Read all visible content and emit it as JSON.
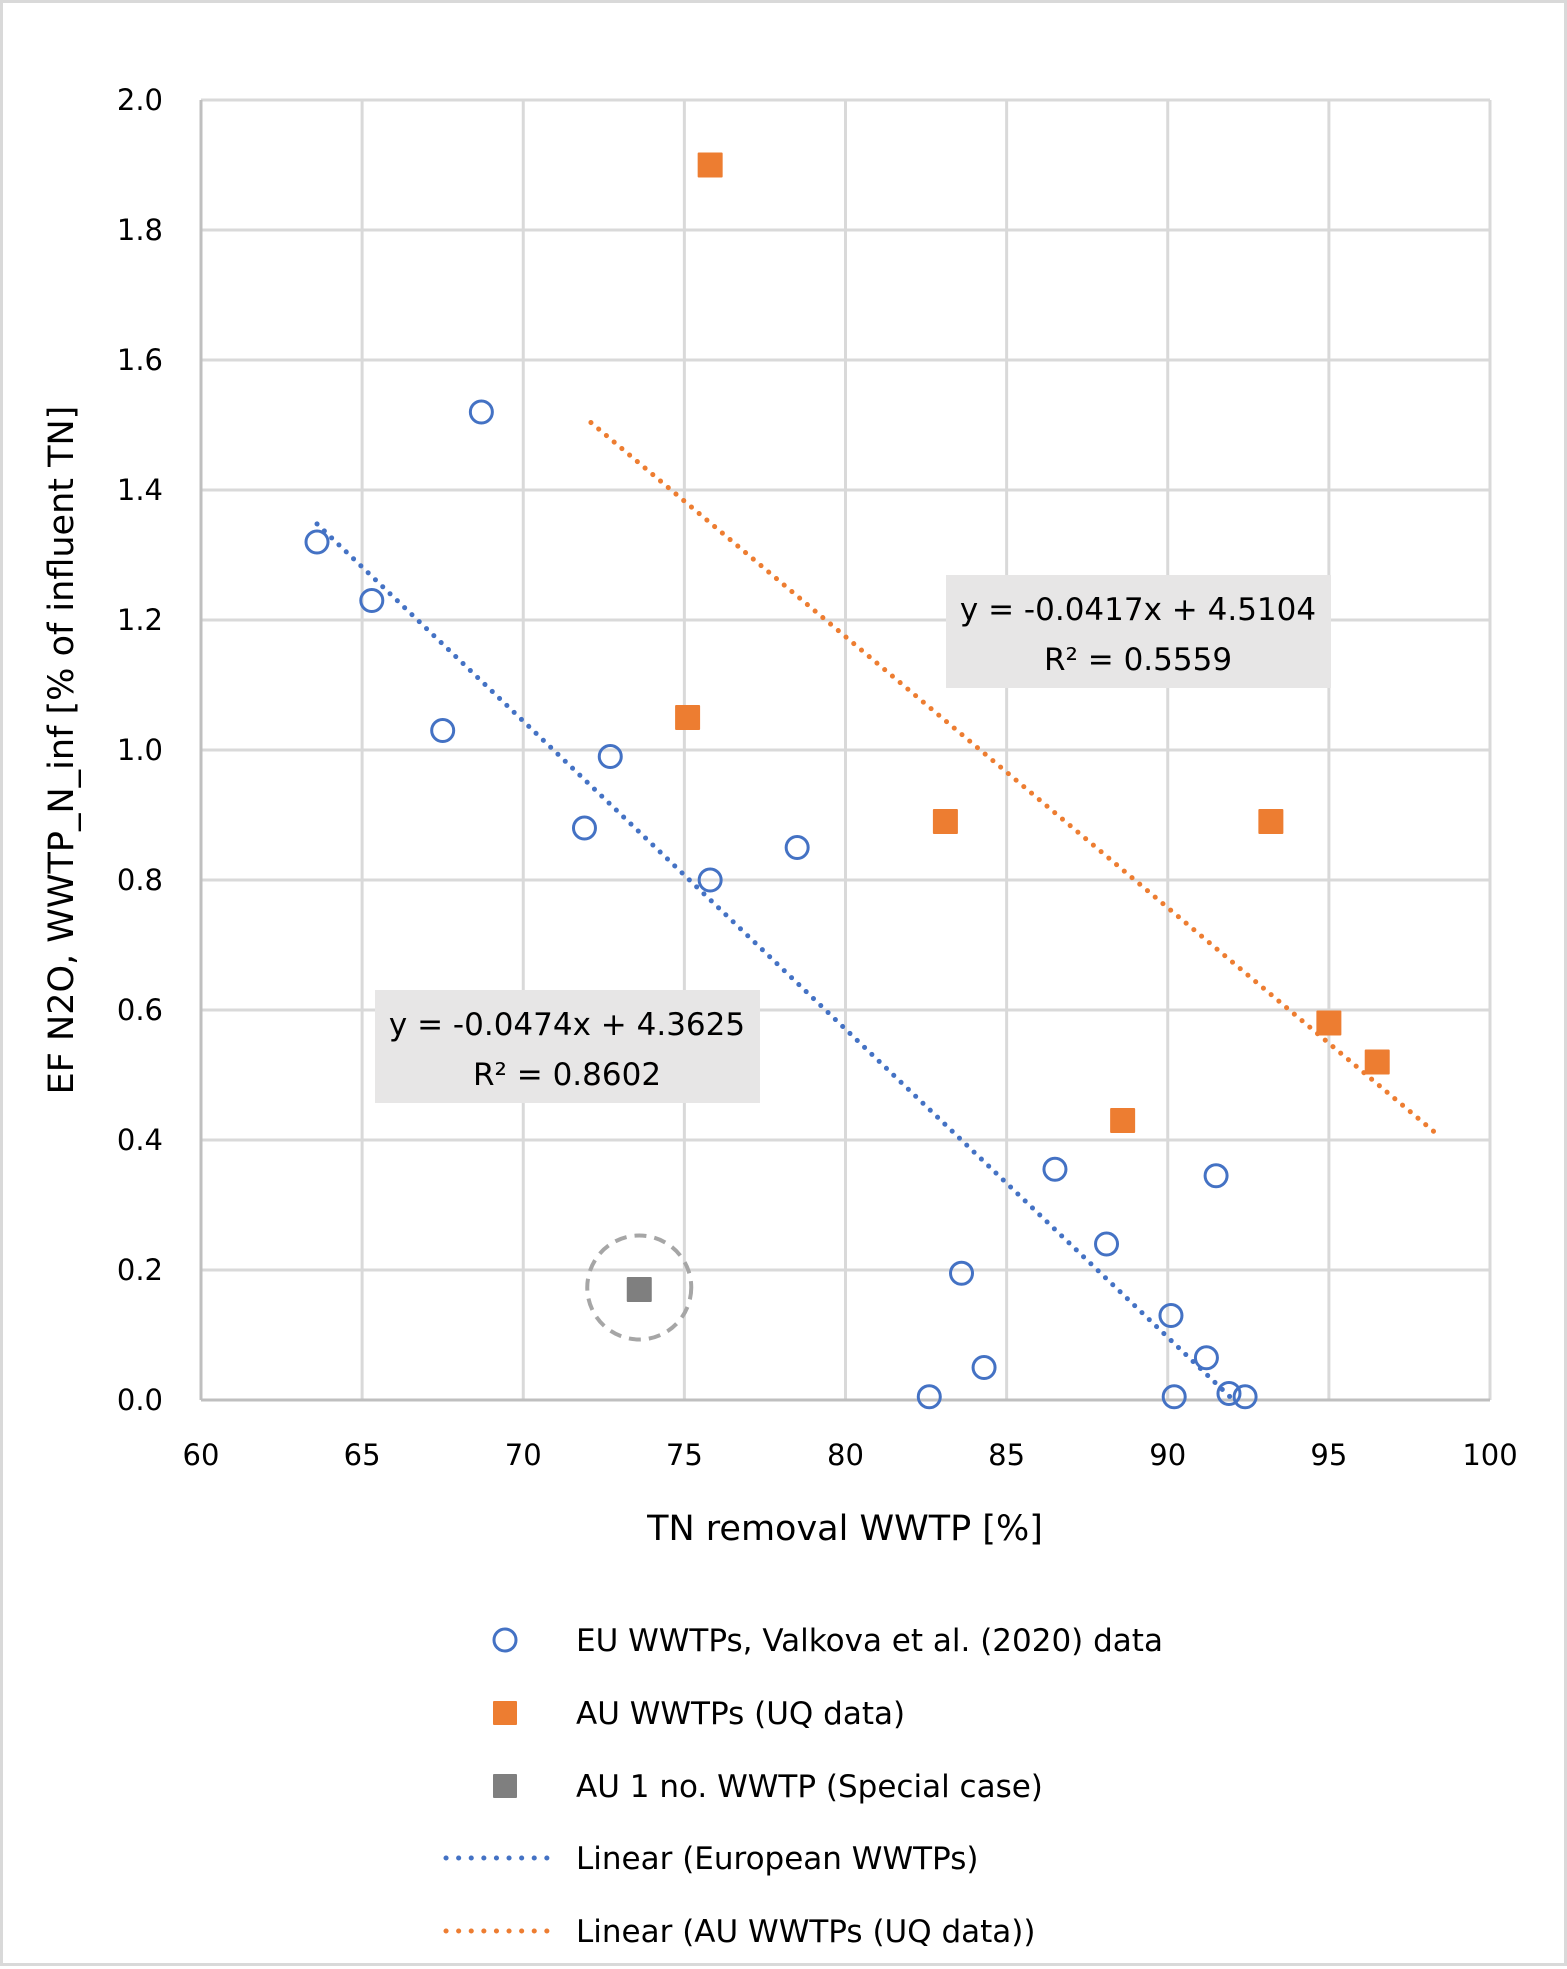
{
  "chart_data": {
    "type": "scatter",
    "title": "",
    "xlabel": "TN removal WWTP [%]",
    "ylabel": "EF N2O, WWTP_N_inf [% of influent TN]",
    "xlim": [
      60,
      100
    ],
    "ylim": [
      0.0,
      2.0
    ],
    "x_ticks": [
      60,
      65,
      70,
      75,
      80,
      85,
      90,
      95,
      100
    ],
    "x_tick_labels": [
      "60",
      "65",
      "70",
      "75",
      "80",
      "85",
      "90",
      "95",
      "100"
    ],
    "y_ticks": [
      0.0,
      0.2,
      0.4,
      0.6,
      0.8,
      1.0,
      1.2,
      1.4,
      1.6,
      1.8,
      2.0
    ],
    "y_tick_labels": [
      "0.0",
      "0.2",
      "0.4",
      "0.6",
      "0.8",
      "1.0",
      "1.2",
      "1.4",
      "1.6",
      "1.8",
      "2.0"
    ],
    "grid": true,
    "legend_position": "bottom",
    "series": [
      {
        "name": "EU WWTPs, Valkova et al. (2020) data",
        "marker": "open-circle",
        "color": "#4472c4",
        "points": [
          [
            68.7,
            1.52
          ],
          [
            63.6,
            1.32
          ],
          [
            65.3,
            1.23
          ],
          [
            67.5,
            1.03
          ],
          [
            72.7,
            0.99
          ],
          [
            71.9,
            0.88
          ],
          [
            78.5,
            0.85
          ],
          [
            75.8,
            0.8
          ],
          [
            86.5,
            0.355
          ],
          [
            91.5,
            0.345
          ],
          [
            88.1,
            0.24
          ],
          [
            83.6,
            0.195
          ],
          [
            90.1,
            0.13
          ],
          [
            91.2,
            0.065
          ],
          [
            84.3,
            0.05
          ],
          [
            82.6,
            0.005
          ],
          [
            90.2,
            0.005
          ],
          [
            91.9,
            0.01
          ],
          [
            92.4,
            0.005
          ]
        ]
      },
      {
        "name": "AU WWTPs (UQ data)",
        "marker": "filled-square",
        "color": "#ed7d31",
        "points": [
          [
            75.8,
            1.9
          ],
          [
            75.1,
            1.05
          ],
          [
            83.1,
            0.89
          ],
          [
            93.2,
            0.89
          ],
          [
            95.0,
            0.58
          ],
          [
            96.5,
            0.52
          ],
          [
            88.6,
            0.43
          ]
        ]
      },
      {
        "name": "AU 1 no. WWTP (Special case)",
        "marker": "filled-square",
        "color": "#7f7f7f",
        "highlight": "dashed-circle",
        "points": [
          [
            73.6,
            0.17
          ]
        ]
      }
    ],
    "trendlines": [
      {
        "name": "Linear (European WWTPs)",
        "color": "#4472c4",
        "style": "dotted",
        "slope": -0.0474,
        "intercept": 4.3625,
        "x_range": [
          63.6,
          92.0
        ],
        "equation_label": "y = -0.0474x + 4.3625",
        "r2_label": "R² = 0.8602"
      },
      {
        "name": "Linear (AU WWTPs (UQ data))",
        "color": "#ed7d31",
        "style": "dotted",
        "slope": -0.0417,
        "intercept": 4.5104,
        "x_range": [
          72.1,
          98.4
        ],
        "equation_label": "y = -0.0417x + 4.5104",
        "r2_label": "R² = 0.5559"
      }
    ],
    "equation_box_color": "#e7e6e6",
    "gridline_color": "#d9d9d9",
    "highlight_circle_color": "#a6a6a6"
  },
  "legend": {
    "items": [
      {
        "label": "EU WWTPs, Valkova et al. (2020) data",
        "symbol": "open-circle",
        "color": "#4472c4"
      },
      {
        "label": "AU WWTPs (UQ data)",
        "symbol": "filled-square",
        "color": "#ed7d31"
      },
      {
        "label": "AU 1 no. WWTP (Special case)",
        "symbol": "filled-square",
        "color": "#7f7f7f"
      },
      {
        "label": "Linear (European WWTPs)",
        "symbol": "dotted-line",
        "color": "#4472c4"
      },
      {
        "label": "Linear (AU WWTPs (UQ data))",
        "symbol": "dotted-line",
        "color": "#ed7d31"
      }
    ]
  }
}
